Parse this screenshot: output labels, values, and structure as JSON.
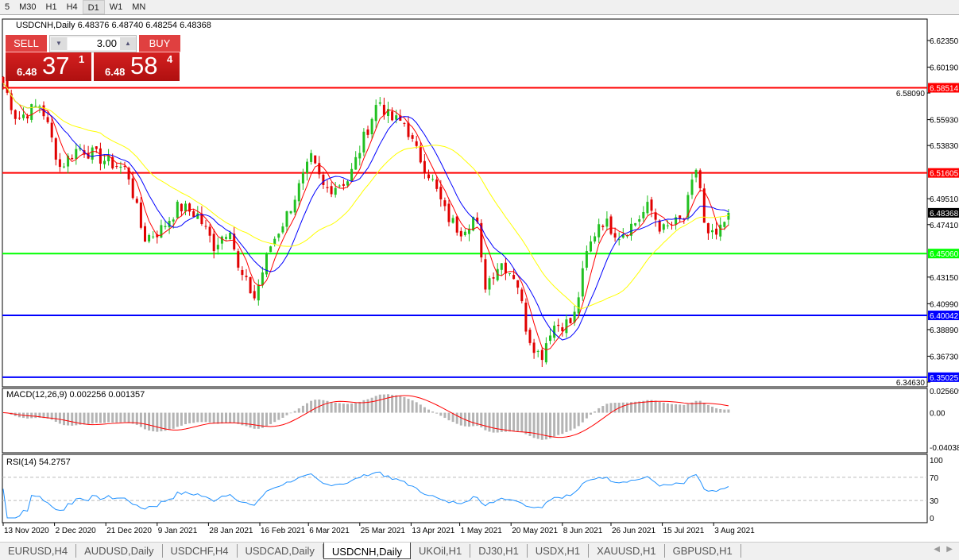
{
  "toolbar": {
    "timeframes": [
      "5",
      "M30",
      "H1",
      "H4",
      "D1",
      "W1",
      "MN"
    ],
    "active": "D1"
  },
  "header": {
    "symbol": "USDCNH,Daily",
    "ohlc": "6.48376 6.48740 6.48254 6.48368"
  },
  "trade": {
    "sell_label": "SELL",
    "buy_label": "BUY",
    "lot": "3.00",
    "sell": {
      "prefix": "6.48",
      "big": "37",
      "sup": "1"
    },
    "buy": {
      "prefix": "6.48",
      "big": "58",
      "sup": "4"
    }
  },
  "indicators": {
    "macd_label": "MACD(12,26,9) 0.002256 0.001357",
    "rsi_label": "RSI(14) 54.2757"
  },
  "tabs": [
    "EURUSD,H4",
    "AUDUSD,Daily",
    "USDCHF,H4",
    "USDCAD,Daily",
    "USDCNH,Daily",
    "UKOil,H1",
    "DJ30,H1",
    "USDX,H1",
    "XAUUSD,H1",
    "GBPUSD,H1"
  ],
  "active_tab": "USDCNH,Daily",
  "colors": {
    "up": "#22c022",
    "down": "#e00000",
    "ma_fast": "#ff0000",
    "ma_mid": "#0000ff",
    "ma_slow": "#ffff00",
    "macd_hist": "#b4b4b4",
    "macd_signal": "#ff0000",
    "rsi": "#1e90ff"
  },
  "chart_data": {
    "type": "candlestick",
    "symbol": "USDCNH",
    "timeframe": "Daily",
    "ylim": [
      6.3463,
      6.6235
    ],
    "yticks": [
      "6.62350",
      "6.60190",
      "6.58090",
      "6.55930",
      "6.53830",
      "6.49510",
      "6.47410",
      "6.43150",
      "6.40990",
      "6.38890",
      "6.36730",
      "6.34630"
    ],
    "current_price": "6.48368",
    "hlines": [
      {
        "value": "6.58514",
        "color": "#ff0000"
      },
      {
        "value": "6.51605",
        "color": "#ff0000"
      },
      {
        "value": "6.45060",
        "color": "#00ff00"
      },
      {
        "value": "6.40042",
        "color": "#0000ff"
      },
      {
        "value": "6.35025",
        "color": "#0000ff"
      }
    ],
    "xticks": [
      "13 Nov 2020",
      "2 Dec 2020",
      "21 Dec 2020",
      "9 Jan 2021",
      "28 Jan 2021",
      "16 Feb 2021",
      "6 Mar 2021",
      "25 Mar 2021",
      "13 Apr 2021",
      "1 May 2021",
      "20 May 2021",
      "8 Jun 2021",
      "26 Jun 2021",
      "15 Jul 2021",
      "3 Aug 2021"
    ],
    "closes": [
      [
        "2020-11-13",
        6.589
      ],
      [
        "2020-11-18",
        6.56
      ],
      [
        "2020-11-27",
        6.572
      ],
      [
        "2020-12-04",
        6.521
      ],
      [
        "2020-12-11",
        6.537
      ],
      [
        "2020-12-20",
        6.527
      ],
      [
        "2020-12-29",
        6.518
      ],
      [
        "2021-01-04",
        6.463
      ],
      [
        "2021-01-10",
        6.469
      ],
      [
        "2021-01-17",
        6.489
      ],
      [
        "2021-01-24",
        6.482
      ],
      [
        "2021-01-30",
        6.457
      ],
      [
        "2021-02-05",
        6.473
      ],
      [
        "2021-02-08",
        6.437
      ],
      [
        "2021-02-14",
        6.415
      ],
      [
        "2021-02-20",
        6.457
      ],
      [
        "2021-02-26",
        6.482
      ],
      [
        "2021-03-07",
        6.527
      ],
      [
        "2021-03-12",
        6.502
      ],
      [
        "2021-03-21",
        6.511
      ],
      [
        "2021-03-27",
        6.547
      ],
      [
        "2021-04-01",
        6.576
      ],
      [
        "2021-04-05",
        6.56
      ],
      [
        "2021-04-11",
        6.556
      ],
      [
        "2021-04-14",
        6.537
      ],
      [
        "2021-04-20",
        6.514
      ],
      [
        "2021-04-26",
        6.482
      ],
      [
        "2021-05-01",
        6.469
      ],
      [
        "2021-05-07",
        6.482
      ],
      [
        "2021-05-10",
        6.424
      ],
      [
        "2021-05-16",
        6.444
      ],
      [
        "2021-05-22",
        6.431
      ],
      [
        "2021-05-26",
        6.386
      ],
      [
        "2021-05-31",
        6.366
      ],
      [
        "2021-06-04",
        6.392
      ],
      [
        "2021-06-12",
        6.395
      ],
      [
        "2021-06-17",
        6.45
      ],
      [
        "2021-06-22",
        6.479
      ],
      [
        "2021-06-29",
        6.466
      ],
      [
        "2021-07-05",
        6.476
      ],
      [
        "2021-07-10",
        6.489
      ],
      [
        "2021-07-15",
        6.469
      ],
      [
        "2021-07-23",
        6.479
      ],
      [
        "2021-07-28",
        6.524
      ],
      [
        "2021-07-31",
        6.463
      ],
      [
        "2021-08-05",
        6.466
      ],
      [
        "2021-08-08",
        6.479
      ],
      [
        "2021-08-10",
        6.48368
      ]
    ],
    "macd": {
      "ylim": [
        -0.04038,
        0.025609
      ],
      "yticks": [
        "0.025609",
        "0.00",
        "-0.04038"
      ],
      "value": 0.002256,
      "signal": 0.001357
    },
    "rsi": {
      "ylim": [
        0,
        100
      ],
      "yticks": [
        "100",
        "70",
        "30",
        "0"
      ],
      "levels": [
        70,
        30
      ],
      "value": 54.2757
    }
  }
}
